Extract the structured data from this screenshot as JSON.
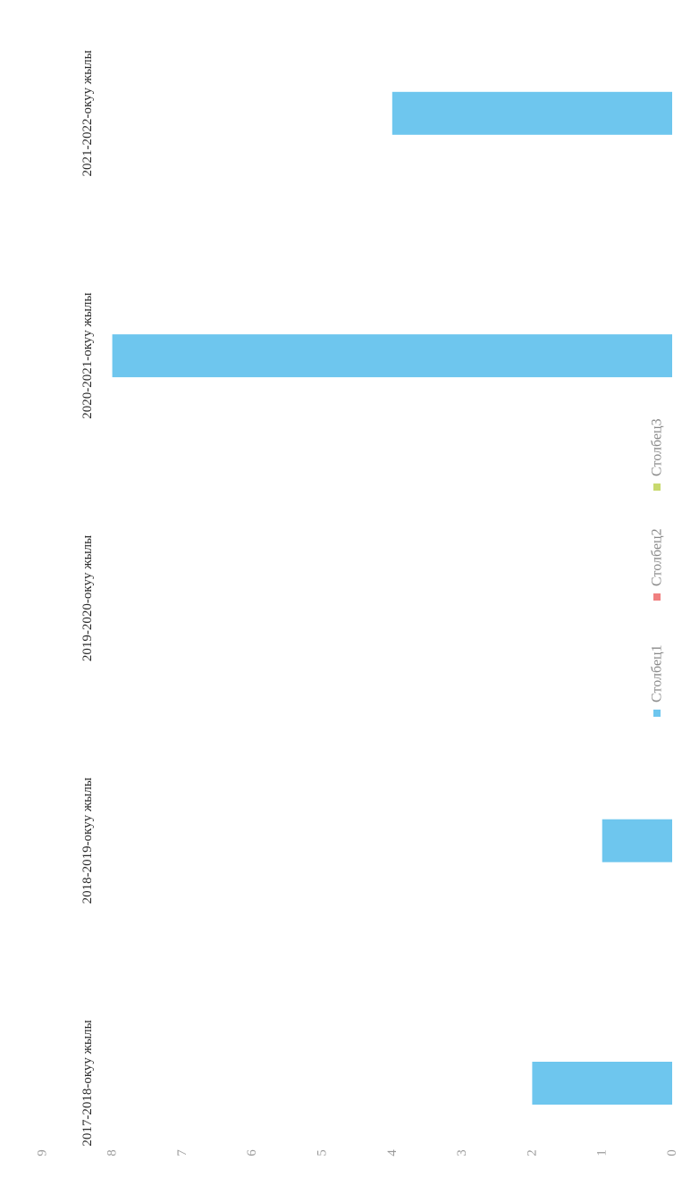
{
  "chart_data": {
    "type": "bar",
    "orientation": "rotated-horizontal",
    "categories": [
      "2017-2018-окуу жылы",
      "2018-2019-окуу жылы",
      "2019-2020-окуу жылы",
      "2020-2021-окуу жылы",
      "2021-2022-окуу жылы"
    ],
    "series": [
      {
        "name": "Столбец1",
        "values": [
          2,
          1,
          0,
          8,
          4
        ],
        "color": "#6EC6EE"
      },
      {
        "name": "Столбец2",
        "values": [
          0,
          0,
          0,
          0,
          0
        ],
        "color": "#F08080"
      },
      {
        "name": "Столбец3",
        "values": [
          0,
          0,
          0,
          0,
          0
        ],
        "color": "#C8D96E"
      }
    ],
    "value_ticks": [
      "0",
      "1",
      "2",
      "3",
      "4",
      "5",
      "6",
      "7",
      "8",
      "9"
    ],
    "ylim": [
      0,
      9
    ],
    "legend_position": "right",
    "grid": false
  }
}
